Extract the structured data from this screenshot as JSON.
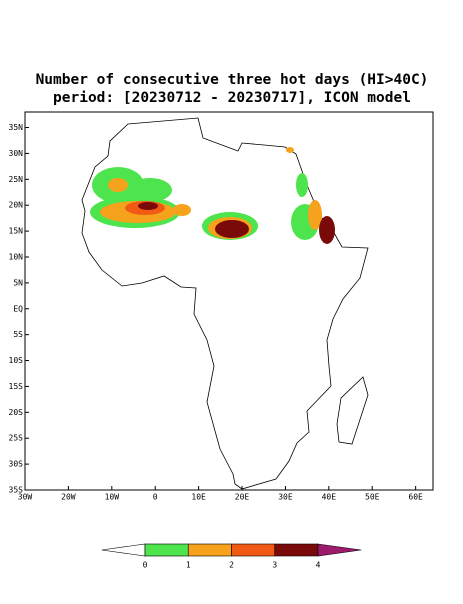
{
  "title": [
    "Number of consecutive three hot days (HI>40C)",
    "period: [20230712 - 20230717], ICON model"
  ],
  "map": {
    "xlim": [
      -30,
      64
    ],
    "ylim": [
      -35,
      38
    ],
    "xticks": [
      {
        "value": -30,
        "label": "30W"
      },
      {
        "value": -20,
        "label": "20W"
      },
      {
        "value": -10,
        "label": "10W"
      },
      0,
      {
        "value": 10,
        "label": "10E"
      },
      {
        "value": 20,
        "label": "20E"
      },
      {
        "value": 30,
        "label": "30E"
      },
      {
        "value": 40,
        "label": "40E"
      },
      {
        "value": 50,
        "label": "50E"
      },
      {
        "value": 60,
        "label": "60E"
      }
    ],
    "yticks": [
      {
        "value": 35,
        "label": "35N"
      },
      {
        "value": 30,
        "label": "30N"
      },
      {
        "value": 25,
        "label": "25N"
      },
      {
        "value": 20,
        "label": "20N"
      },
      {
        "value": 15,
        "label": "15N"
      },
      {
        "value": 10,
        "label": "10N"
      },
      {
        "value": 5,
        "label": "5N"
      },
      {
        "value": 0,
        "label": "EQ"
      },
      {
        "value": -5,
        "label": "5S"
      },
      {
        "value": -10,
        "label": "10S"
      },
      {
        "value": -15,
        "label": "15S"
      },
      {
        "value": -20,
        "label": "20S"
      },
      {
        "value": -25,
        "label": "25S"
      },
      {
        "value": -30,
        "label": "30S"
      },
      {
        "value": -35,
        "label": "35S"
      }
    ]
  },
  "colorbar": {
    "levels": [
      0,
      1,
      2,
      3,
      4
    ],
    "colors": [
      "#ffffff",
      "#4ee44e",
      "#f6a21c",
      "#f05a14",
      "#7a0a0a",
      "#9e1a6a"
    ]
  }
}
